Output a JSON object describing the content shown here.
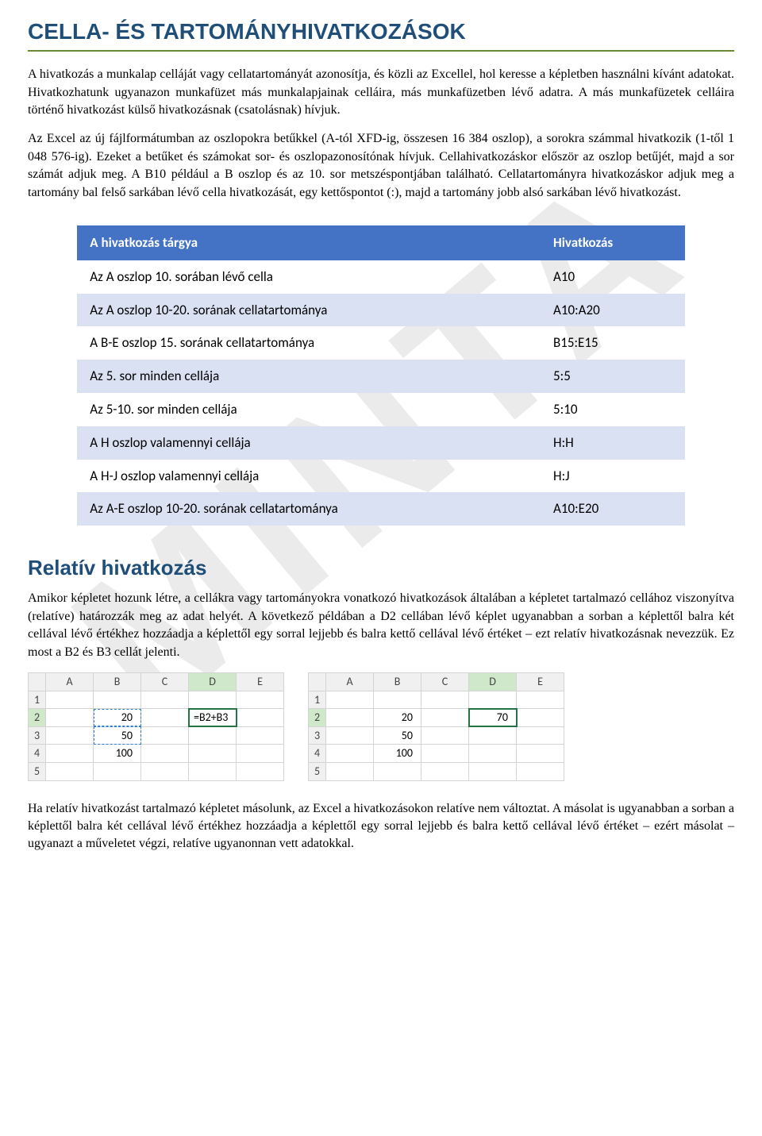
{
  "watermark": "MINTA",
  "title": "CELLA- ÉS TARTOMÁNYHIVATKOZÁSOK",
  "para1": "A hivatkozás a munkalap celláját vagy cellatartományát azonosítja, és közli az Excellel, hol keresse a képletben használni kívánt adatokat. Hivatkozhatunk ugyanazon munkafüzet más munkalapjainak celláira, más munkafüzetben lévő adatra. A más munkafüzetek celláira történő hivatkozást külső hivatkozásnak (csatolásnak) hívjuk.",
  "para2": "Az Excel az új fájlformátumban az oszlopokra betűkkel (A-tól XFD-ig, összesen 16 384 oszlop), a sorokra számmal hivatkozik (1-től 1 048 576-ig). Ezeket a betűket és számokat sor- és oszlopazonosítónak hívjuk. Cellahivatkozáskor először az oszlop betűjét, majd a sor számát adjuk meg. A B10 például a B oszlop és az 10. sor metszéspontjában található. Cellatartományra hivatkozáskor adjuk meg a tartomány bal felső sarkában lévő cella hivatkozását, egy kettőspontot (:), majd a tartomány jobb alsó sarkában lévő hivatkozást.",
  "table": {
    "header_target": "A hivatkozás tárgya",
    "header_ref": "Hivatkozás",
    "rows": [
      {
        "target": "Az A oszlop 10. sorában lévő cella",
        "ref": "A10"
      },
      {
        "target": "Az A oszlop 10-20. sorának cellatartománya",
        "ref": "A10:A20"
      },
      {
        "target": "A B-E oszlop 15. sorának cellatartománya",
        "ref": "B15:E15"
      },
      {
        "target": "Az 5. sor minden cellája",
        "ref": "5:5"
      },
      {
        "target": "Az 5-10. sor minden cellája",
        "ref": "5:10"
      },
      {
        "target": "A H oszlop valamennyi cellája",
        "ref": "H:H"
      },
      {
        "target": "A H-J oszlop valamennyi cellája",
        "ref": "H:J"
      },
      {
        "target": "Az A-E oszlop 10-20. sorának cellatartománya",
        "ref": "A10:E20"
      }
    ]
  },
  "subtitle": "Relatív hivatkozás",
  "para3": "Amikor képletet hozunk létre, a cellákra vagy tartományokra vonatkozó hivatkozások általában a képletet tartalmazó cellához viszonyítva (relatíve) határozzák meg az adat helyét. A következő példában a D2 cellában lévő képlet ugyanabban a sorban a képlettől balra két cellával lévő értékhez hozzáadja a képlettől egy sorral lejjebb és balra kettő cellával lévő értéket – ezt relatív hivatkozásnak nevezzük. Ez most a B2 és B3 cellát jelenti.",
  "excel_left": {
    "cols": [
      "A",
      "B",
      "C",
      "D",
      "E"
    ],
    "rows": [
      "1",
      "2",
      "3",
      "4",
      "5"
    ],
    "b2": "20",
    "b3": "50",
    "b4": "100",
    "d2": "=B2+B3",
    "sel_col": "D",
    "sel_row": "2"
  },
  "excel_right": {
    "cols": [
      "A",
      "B",
      "C",
      "D",
      "E"
    ],
    "rows": [
      "1",
      "2",
      "3",
      "4",
      "5"
    ],
    "b2": "20",
    "b3": "50",
    "b4": "100",
    "d2": "70",
    "sel_col": "D",
    "sel_row": "2"
  },
  "para4": "Ha relatív hivatkozást tartalmazó képletet másolunk, az Excel a hivatkozásokon relatíve nem változtat. A másolat is ugyanabban a sorban a képlettől balra két cellával lévő értékhez hozzáadja a képlettől egy sorral lejjebb és balra kettő cellával lévő értéket – ezért másolat – ugyanazt a műveletet végzi, relatíve ugyanonnan vett adatokkal."
}
